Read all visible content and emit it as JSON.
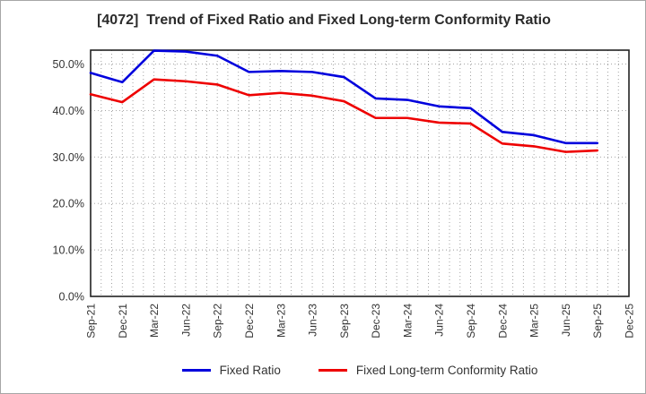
{
  "title": "[4072]  Trend of Fixed Ratio and Fixed Long-term Conformity Ratio",
  "chart_data": {
    "type": "line",
    "title": "[4072]  Trend of Fixed Ratio and Fixed Long-term Conformity Ratio",
    "xlabel": "",
    "ylabel": "",
    "categories": [
      "Sep-21",
      "Dec-21",
      "Mar-22",
      "Jun-22",
      "Sep-22",
      "Dec-22",
      "Mar-23",
      "Jun-23",
      "Sep-23",
      "Dec-23",
      "Mar-24",
      "Jun-24",
      "Sep-24",
      "Dec-24",
      "Mar-25",
      "Jun-25",
      "Sep-25",
      "Dec-25"
    ],
    "series": [
      {
        "name": "Fixed Ratio",
        "color": "#0000dd",
        "values": [
          48.1,
          46.1,
          52.9,
          52.7,
          51.8,
          48.3,
          48.5,
          48.3,
          47.2,
          42.6,
          42.3,
          40.9,
          40.5,
          35.4,
          34.7,
          33.0,
          33.0,
          null
        ]
      },
      {
        "name": "Fixed Long-term Conformity Ratio",
        "color": "#ee0000",
        "values": [
          43.5,
          41.8,
          46.7,
          46.3,
          45.6,
          43.3,
          43.8,
          43.2,
          42.0,
          38.4,
          38.4,
          37.4,
          37.2,
          32.9,
          32.3,
          31.1,
          31.4,
          null
        ]
      }
    ],
    "ylim": [
      0,
      53
    ],
    "y_ticks": [
      {
        "value": 0,
        "label": "0.0%"
      },
      {
        "value": 10,
        "label": "10.0%"
      },
      {
        "value": 20,
        "label": "20.0%"
      },
      {
        "value": 30,
        "label": "30.0%"
      },
      {
        "value": 40,
        "label": "40.0%"
      },
      {
        "value": 50,
        "label": "50.0%"
      }
    ],
    "grid": "dotted",
    "minor_x_gridlines_per_label": 3,
    "legend_position": "bottom-center",
    "axis_color": "#222222",
    "grid_color": "#999999",
    "tick_label_color": "#333333"
  }
}
